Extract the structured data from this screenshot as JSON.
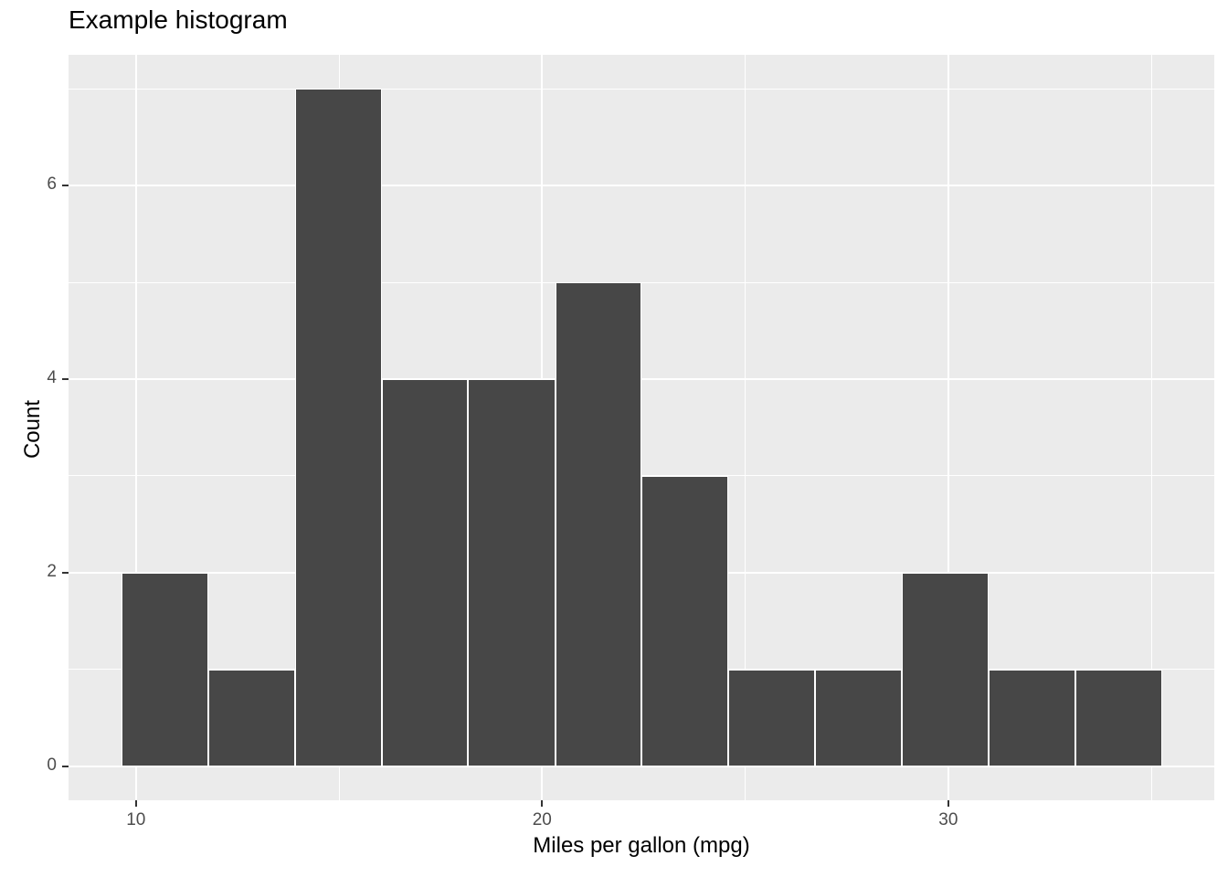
{
  "chart_data": {
    "type": "bar",
    "subtype": "histogram",
    "title": "Example histogram",
    "xlabel": "Miles per gallon (mpg)",
    "ylabel": "Count",
    "bin_start": 9.64,
    "binwidth": 2.135,
    "bin_edges": [
      9.64,
      11.78,
      13.91,
      16.05,
      18.18,
      20.32,
      22.45,
      24.59,
      26.72,
      28.86,
      30.99,
      33.13,
      35.26
    ],
    "counts": [
      2,
      1,
      7,
      4,
      4,
      5,
      3,
      1,
      1,
      2,
      1,
      1
    ],
    "total_observations": 32,
    "xlim": [
      8.34,
      36.55
    ],
    "ylim": [
      -0.35,
      7.35
    ],
    "x_major_ticks": [
      10,
      20,
      30
    ],
    "x_minor_gridlines": [
      15,
      25,
      35
    ],
    "y_major_ticks": [
      0,
      2,
      4,
      6
    ],
    "y_minor_gridlines": [
      1,
      3,
      5,
      7
    ],
    "grid": true,
    "legend": "none",
    "colors": {
      "bar_fill": "#474747",
      "bar_outline": "#FFFFFF",
      "panel_bg": "#EBEBEB",
      "gridline": "#FFFFFF",
      "tick_label": "#4D4D4D",
      "tick_mark": "#333333",
      "title": "#000000",
      "axis_title": "#000000",
      "page_bg": "#FFFFFF"
    }
  }
}
